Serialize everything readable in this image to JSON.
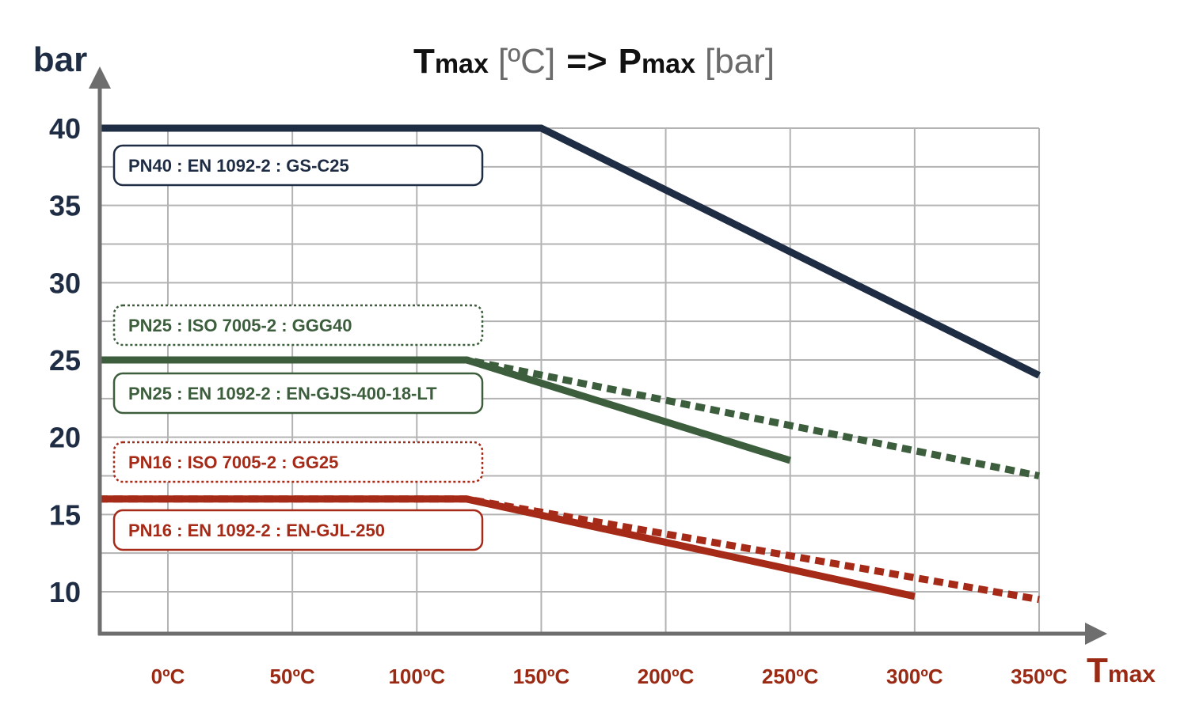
{
  "title": {
    "t_symbol": "T",
    "t_sub": "max",
    "t_unit": "[ºC]",
    "arrow": "=>",
    "p_symbol": "P",
    "p_sub": "max",
    "p_unit": "[bar]"
  },
  "chart_data": {
    "type": "line",
    "ylabel": "bar",
    "xlabel_symbol": "T",
    "xlabel_sub": "max",
    "x_ticks": [
      0,
      50,
      100,
      150,
      200,
      250,
      300,
      350
    ],
    "x_tick_labels": [
      "0ºC",
      "50ºC",
      "100ºC",
      "150ºC",
      "200ºC",
      "250ºC",
      "300ºC",
      "350ºC"
    ],
    "y_ticks": [
      10,
      15,
      20,
      25,
      30,
      35,
      40
    ],
    "y_tick_labels": [
      "10",
      "15",
      "20",
      "25",
      "30",
      "35",
      "40"
    ],
    "xlim": [
      -28,
      355
    ],
    "ylim": [
      7.2,
      40
    ],
    "grid": true,
    "colors": {
      "navy": "#1f2d44",
      "green": "#3d5e3d",
      "red": "#a52a18",
      "grid": "#b3b3b3",
      "axis": "#6e6e6e"
    },
    "series": [
      {
        "name": "PN40 : EN 1092-2 : GS-C25",
        "color": "#1f2d44",
        "style": "solid",
        "points": [
          [
            -28,
            40
          ],
          [
            150,
            40
          ],
          [
            350,
            24
          ]
        ]
      },
      {
        "name": "PN25 : ISO 7005-2 : GGG40",
        "color": "#3d5e3d",
        "style": "dotted",
        "points": [
          [
            -28,
            25
          ],
          [
            120,
            25
          ],
          [
            350,
            17.5
          ]
        ]
      },
      {
        "name": "PN25 : EN 1092-2 : EN-GJS-400-18-LT",
        "color": "#3d5e3d",
        "style": "solid",
        "points": [
          [
            -28,
            25
          ],
          [
            120,
            25
          ],
          [
            250,
            18.5
          ]
        ]
      },
      {
        "name": "PN16 : ISO 7005-2 : GG25",
        "color": "#a52a18",
        "style": "dotted",
        "points": [
          [
            -28,
            16
          ],
          [
            120,
            16
          ],
          [
            350,
            9.5
          ]
        ]
      },
      {
        "name": "PN16 : EN 1092-2 : EN-GJL-250",
        "color": "#a52a18",
        "style": "solid",
        "points": [
          [
            -28,
            16
          ],
          [
            120,
            16
          ],
          [
            300,
            9.7
          ]
        ]
      }
    ]
  }
}
